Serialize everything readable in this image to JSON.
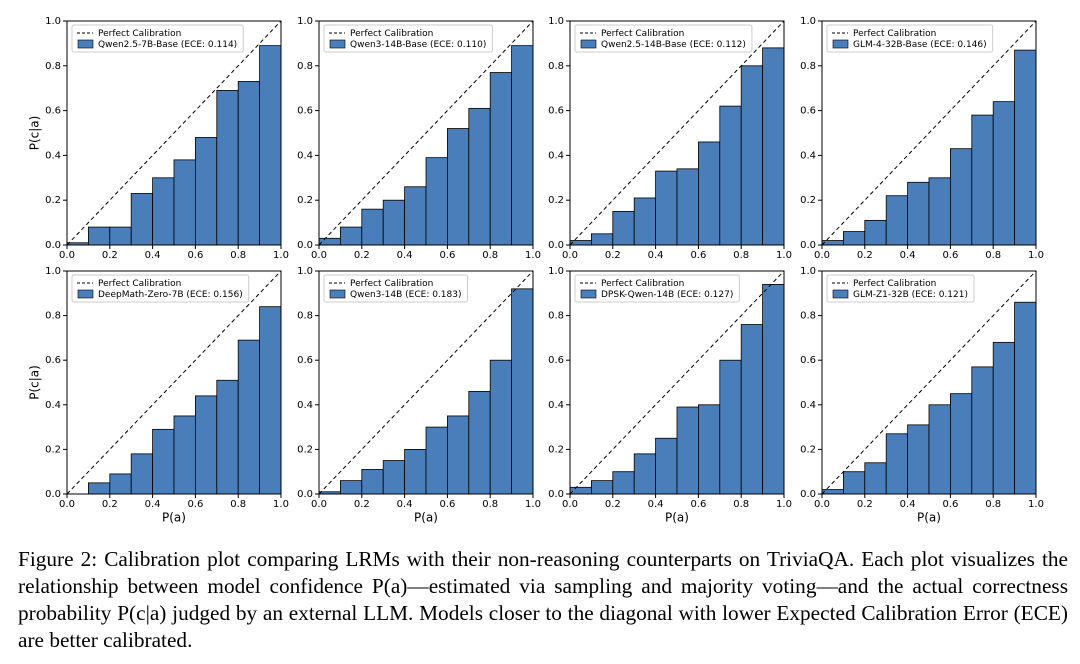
{
  "chart_data": [
    {
      "type": "histogram",
      "bins": [
        0,
        0.1,
        0.2,
        0.3,
        0.4,
        0.5,
        0.6,
        0.7,
        0.8,
        0.9,
        1
      ],
      "series": [
        {
          "name": "Qwen2.5-7B-Base (ECE: 0.114)",
          "color": "#4a7ebb",
          "values": [
            0.01,
            0.08,
            0.08,
            0.23,
            0.3,
            0.38,
            0.48,
            0.69,
            0.73,
            0.89
          ]
        }
      ],
      "reference_line": {
        "name": "Perfect Calibration"
      },
      "ylabel": "P(c|a)",
      "xlim": [
        0,
        1
      ],
      "ylim": [
        0,
        1
      ],
      "xticks": [
        {
          "value": 0,
          "label": "0.0"
        },
        0.2,
        0.4,
        0.6,
        0.8,
        {
          "value": 1,
          "label": "1.0"
        }
      ],
      "yticks": [
        {
          "value": 0,
          "label": "0.0"
        },
        0.2,
        0.4,
        0.6,
        0.8,
        {
          "value": 1,
          "label": "1.0"
        }
      ],
      "legend": "upper left"
    },
    {
      "type": "histogram",
      "bins": [
        0,
        0.1,
        0.2,
        0.3,
        0.4,
        0.5,
        0.6,
        0.7,
        0.8,
        0.9,
        1
      ],
      "series": [
        {
          "name": "Qwen3-14B-Base (ECE: 0.110)",
          "color": "#4a7ebb",
          "values": [
            0.03,
            0.08,
            0.16,
            0.2,
            0.26,
            0.39,
            0.52,
            0.61,
            0.77,
            0.89
          ]
        }
      ],
      "reference_line": {
        "name": "Perfect Calibration"
      },
      "xlim": [
        0,
        1
      ],
      "ylim": [
        0,
        1
      ],
      "xticks": [
        {
          "value": 0,
          "label": "0.0"
        },
        0.2,
        0.4,
        0.6,
        0.8,
        {
          "value": 1,
          "label": "1.0"
        }
      ],
      "yticks": [
        {
          "value": 0,
          "label": "0.0"
        },
        0.2,
        0.4,
        0.6,
        0.8,
        {
          "value": 1,
          "label": "1.0"
        }
      ],
      "legend": "upper left"
    },
    {
      "type": "histogram",
      "bins": [
        0,
        0.1,
        0.2,
        0.3,
        0.4,
        0.5,
        0.6,
        0.7,
        0.8,
        0.9,
        1
      ],
      "series": [
        {
          "name": "Qwen2.5-14B-Base (ECE: 0.112)",
          "color": "#4a7ebb",
          "values": [
            0.02,
            0.05,
            0.15,
            0.21,
            0.33,
            0.34,
            0.46,
            0.62,
            0.8,
            0.88
          ]
        }
      ],
      "reference_line": {
        "name": "Perfect Calibration"
      },
      "xlim": [
        0,
        1
      ],
      "ylim": [
        0,
        1
      ],
      "xticks": [
        {
          "value": 0,
          "label": "0.0"
        },
        0.2,
        0.4,
        0.6,
        0.8,
        {
          "value": 1,
          "label": "1.0"
        }
      ],
      "yticks": [
        {
          "value": 0,
          "label": "0.0"
        },
        0.2,
        0.4,
        0.6,
        0.8,
        {
          "value": 1,
          "label": "1.0"
        }
      ],
      "legend": "upper left"
    },
    {
      "type": "histogram",
      "bins": [
        0,
        0.1,
        0.2,
        0.3,
        0.4,
        0.5,
        0.6,
        0.7,
        0.8,
        0.9,
        1
      ],
      "series": [
        {
          "name": "GLM-4-32B-Base (ECE: 0.146)",
          "color": "#4a7ebb",
          "values": [
            0.02,
            0.06,
            0.11,
            0.22,
            0.28,
            0.3,
            0.43,
            0.58,
            0.64,
            0.87
          ]
        }
      ],
      "reference_line": {
        "name": "Perfect Calibration"
      },
      "xlim": [
        0,
        1
      ],
      "ylim": [
        0,
        1
      ],
      "xticks": [
        {
          "value": 0,
          "label": "0.0"
        },
        0.2,
        0.4,
        0.6,
        0.8,
        {
          "value": 1,
          "label": "1.0"
        }
      ],
      "yticks": [
        {
          "value": 0,
          "label": "0.0"
        },
        0.2,
        0.4,
        0.6,
        0.8,
        {
          "value": 1,
          "label": "1.0"
        }
      ],
      "legend": "upper left"
    },
    {
      "type": "histogram",
      "bins": [
        0,
        0.1,
        0.2,
        0.3,
        0.4,
        0.5,
        0.6,
        0.7,
        0.8,
        0.9,
        1
      ],
      "series": [
        {
          "name": "DeepMath-Zero-7B (ECE: 0.156)",
          "color": "#4a7ebb",
          "values": [
            0,
            0.05,
            0.09,
            0.18,
            0.29,
            0.35,
            0.44,
            0.51,
            0.69,
            0.84
          ]
        }
      ],
      "reference_line": {
        "name": "Perfect Calibration"
      },
      "ylabel": "P(c|a)",
      "xlabel": "P(a)",
      "xlim": [
        0,
        1
      ],
      "ylim": [
        0,
        1
      ],
      "xticks": [
        {
          "value": 0,
          "label": "0.0"
        },
        0.2,
        0.4,
        0.6,
        0.8,
        {
          "value": 1,
          "label": "1.0"
        }
      ],
      "yticks": [
        {
          "value": 0,
          "label": "0.0"
        },
        0.2,
        0.4,
        0.6,
        0.8,
        {
          "value": 1,
          "label": "1.0"
        }
      ],
      "legend": "upper left"
    },
    {
      "type": "histogram",
      "bins": [
        0,
        0.1,
        0.2,
        0.3,
        0.4,
        0.5,
        0.6,
        0.7,
        0.8,
        0.9,
        1
      ],
      "series": [
        {
          "name": "Qwen3-14B (ECE: 0.183)",
          "color": "#4a7ebb",
          "values": [
            0.01,
            0.06,
            0.11,
            0.15,
            0.2,
            0.3,
            0.35,
            0.46,
            0.6,
            0.92
          ]
        }
      ],
      "reference_line": {
        "name": "Perfect Calibration"
      },
      "xlabel": "P(a)",
      "xlim": [
        0,
        1
      ],
      "ylim": [
        0,
        1
      ],
      "xticks": [
        {
          "value": 0,
          "label": "0.0"
        },
        0.2,
        0.4,
        0.6,
        0.8,
        {
          "value": 1,
          "label": "1.0"
        }
      ],
      "yticks": [
        {
          "value": 0,
          "label": "0.0"
        },
        0.2,
        0.4,
        0.6,
        0.8,
        {
          "value": 1,
          "label": "1.0"
        }
      ],
      "legend": "upper left"
    },
    {
      "type": "histogram",
      "bins": [
        0,
        0.1,
        0.2,
        0.3,
        0.4,
        0.5,
        0.6,
        0.7,
        0.8,
        0.9,
        1
      ],
      "series": [
        {
          "name": "DPSK-Qwen-14B (ECE: 0.127)",
          "color": "#4a7ebb",
          "values": [
            0.03,
            0.06,
            0.1,
            0.18,
            0.25,
            0.39,
            0.4,
            0.6,
            0.76,
            0.94
          ]
        }
      ],
      "reference_line": {
        "name": "Perfect Calibration"
      },
      "xlabel": "P(a)",
      "xlim": [
        0,
        1
      ],
      "ylim": [
        0,
        1
      ],
      "xticks": [
        {
          "value": 0,
          "label": "0.0"
        },
        0.2,
        0.4,
        0.6,
        0.8,
        {
          "value": 1,
          "label": "1.0"
        }
      ],
      "yticks": [
        {
          "value": 0,
          "label": "0.0"
        },
        0.2,
        0.4,
        0.6,
        0.8,
        {
          "value": 1,
          "label": "1.0"
        }
      ],
      "legend": "upper left"
    },
    {
      "type": "histogram",
      "bins": [
        0,
        0.1,
        0.2,
        0.3,
        0.4,
        0.5,
        0.6,
        0.7,
        0.8,
        0.9,
        1
      ],
      "series": [
        {
          "name": "GLM-Z1-32B (ECE: 0.121)",
          "color": "#4a7ebb",
          "values": [
            0.02,
            0.1,
            0.14,
            0.27,
            0.31,
            0.4,
            0.45,
            0.57,
            0.68,
            0.86
          ]
        }
      ],
      "reference_line": {
        "name": "Perfect Calibration"
      },
      "xlabel": "P(a)",
      "xlim": [
        0,
        1
      ],
      "ylim": [
        0,
        1
      ],
      "xticks": [
        {
          "value": 0,
          "label": "0.0"
        },
        0.2,
        0.4,
        0.6,
        0.8,
        {
          "value": 1,
          "label": "1.0"
        }
      ],
      "yticks": [
        {
          "value": 0,
          "label": "0.0"
        },
        0.2,
        0.4,
        0.6,
        0.8,
        {
          "value": 1,
          "label": "1.0"
        }
      ],
      "legend": "upper left"
    }
  ],
  "caption": "Figure 2: Calibration plot comparing LRMs with their non-reasoning counterparts on TriviaQA. Each plot visualizes the relationship between model confidence P(a)—estimated via sampling and majority voting—and the actual correctness probability P(c|a) judged by an external LLM. Models closer to the diagonal with lower Expected Calibration Error (ECE) are better calibrated."
}
